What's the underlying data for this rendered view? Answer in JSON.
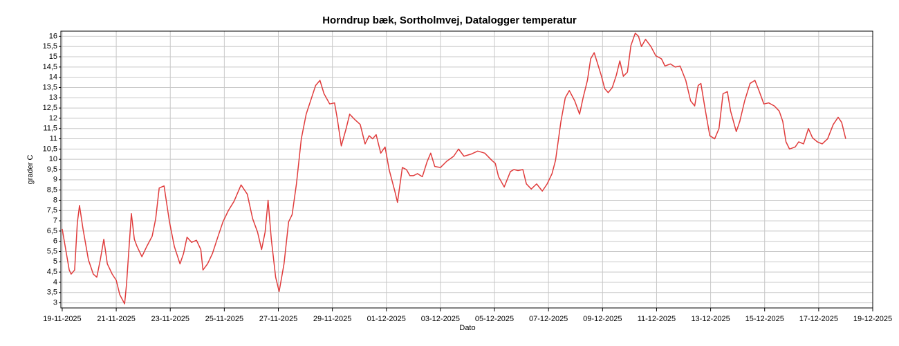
{
  "chart_data": {
    "type": "line",
    "title": "Horndrup bæk, Sortholmvej, Datalogger temperatur",
    "xlabel": "Dato",
    "ylabel": "grader C",
    "color": "#e03c3c",
    "grid": true,
    "x": [
      0,
      0.26,
      0.33,
      0.46,
      0.56,
      0.64,
      0.77,
      0.97,
      1.15,
      1.28,
      1.41,
      1.54,
      1.67,
      1.85,
      2.0,
      2.13,
      2.31,
      2.38,
      2.56,
      2.67,
      2.77,
      2.95,
      3.13,
      3.33,
      3.46,
      3.59,
      3.77,
      3.97,
      4.15,
      4.36,
      4.49,
      4.62,
      4.79,
      4.97,
      5.13,
      5.21,
      5.38,
      5.56,
      5.77,
      5.95,
      6.15,
      6.36,
      6.62,
      6.85,
      7.05,
      7.23,
      7.38,
      7.51,
      7.62,
      7.74,
      7.9,
      8.03,
      8.21,
      8.38,
      8.51,
      8.67,
      8.85,
      9.03,
      9.23,
      9.38,
      9.54,
      9.69,
      9.9,
      10.08,
      10.18,
      10.33,
      10.51,
      10.64,
      10.82,
      11.03,
      11.21,
      11.36,
      11.49,
      11.62,
      11.79,
      11.95,
      12.1,
      12.31,
      12.41,
      12.59,
      12.74,
      12.87,
      13.0,
      13.15,
      13.33,
      13.51,
      13.64,
      13.79,
      14.0,
      14.23,
      14.49,
      14.67,
      14.87,
      15.13,
      15.38,
      15.64,
      15.9,
      16.03,
      16.15,
      16.36,
      16.59,
      16.72,
      16.87,
      17.05,
      17.18,
      17.36,
      17.56,
      17.77,
      17.95,
      18.13,
      18.26,
      18.46,
      18.62,
      18.77,
      18.97,
      19.15,
      19.28,
      19.44,
      19.56,
      19.69,
      19.82,
      19.95,
      20.08,
      20.21,
      20.36,
      20.51,
      20.64,
      20.77,
      20.92,
      21.05,
      21.21,
      21.33,
      21.44,
      21.59,
      21.79,
      21.97,
      22.18,
      22.31,
      22.51,
      22.69,
      22.87,
      23.08,
      23.26,
      23.41,
      23.54,
      23.64,
      23.79,
      23.97,
      24.15,
      24.31,
      24.46,
      24.62,
      24.74,
      24.95,
      25.08,
      25.26,
      25.46,
      25.64,
      25.79,
      25.97,
      26.15,
      26.36,
      26.54,
      26.67,
      26.79,
      26.92,
      27.13,
      27.26,
      27.44,
      27.62,
      27.77,
      27.95,
      28.13,
      28.33,
      28.54,
      28.72,
      28.85,
      29.0
    ],
    "values": [
      6.6,
      4.6,
      4.4,
      4.6,
      6.9,
      7.75,
      6.6,
      5.1,
      4.4,
      4.25,
      5.1,
      6.1,
      4.9,
      4.4,
      4.1,
      3.4,
      2.95,
      3.9,
      7.35,
      6.1,
      5.75,
      5.25,
      5.75,
      6.25,
      7.1,
      8.6,
      8.7,
      6.95,
      5.75,
      4.9,
      5.4,
      6.2,
      5.95,
      6.05,
      5.6,
      4.6,
      4.9,
      5.4,
      6.25,
      6.95,
      7.5,
      7.95,
      8.75,
      8.3,
      7.1,
      6.45,
      5.6,
      6.45,
      8.0,
      6.1,
      4.25,
      3.55,
      4.9,
      6.95,
      7.3,
      8.8,
      11.0,
      12.2,
      13.0,
      13.6,
      13.85,
      13.2,
      12.7,
      12.75,
      12.0,
      10.65,
      11.5,
      12.2,
      11.95,
      11.7,
      10.75,
      11.15,
      11.0,
      11.2,
      10.3,
      10.6,
      9.5,
      8.45,
      7.9,
      9.6,
      9.5,
      9.2,
      9.2,
      9.3,
      9.15,
      9.9,
      10.3,
      9.65,
      9.6,
      9.9,
      10.15,
      10.5,
      10.15,
      10.25,
      10.4,
      10.3,
      9.95,
      9.8,
      9.15,
      8.65,
      9.4,
      9.5,
      9.45,
      9.5,
      8.8,
      8.55,
      8.8,
      8.45,
      8.8,
      9.3,
      9.95,
      11.85,
      13.0,
      13.35,
      12.85,
      12.2,
      13.0,
      13.85,
      14.9,
      15.2,
      14.65,
      14.1,
      13.45,
      13.25,
      13.5,
      14.1,
      14.8,
      14.05,
      14.25,
      15.55,
      16.15,
      16.0,
      15.5,
      15.85,
      15.5,
      15.05,
      14.9,
      14.55,
      14.65,
      14.5,
      14.55,
      13.85,
      12.85,
      12.6,
      13.6,
      13.7,
      12.5,
      11.15,
      11.0,
      11.5,
      13.2,
      13.3,
      12.35,
      11.35,
      11.85,
      12.85,
      13.7,
      13.85,
      13.35,
      12.7,
      12.75,
      12.6,
      12.35,
      11.85,
      10.85,
      10.5,
      10.6,
      10.85,
      10.75,
      11.5,
      11.05,
      10.85,
      10.75,
      11.0,
      11.7,
      12.05,
      11.8,
      11.0
    ],
    "xlim": [
      -0.05,
      30
    ],
    "xticks": [
      {
        "value": 0,
        "label": "19-11-2025"
      },
      {
        "value": 2,
        "label": "21-11-2025"
      },
      {
        "value": 4,
        "label": "23-11-2025"
      },
      {
        "value": 6,
        "label": "25-11-2025"
      },
      {
        "value": 8,
        "label": "27-11-2025"
      },
      {
        "value": 10,
        "label": "29-11-2025"
      },
      {
        "value": 12,
        "label": "01-12-2025"
      },
      {
        "value": 14,
        "label": "03-12-2025"
      },
      {
        "value": 16,
        "label": "05-12-2025"
      },
      {
        "value": 18,
        "label": "07-12-2025"
      },
      {
        "value": 20,
        "label": "09-12-2025"
      },
      {
        "value": 22,
        "label": "11-12-2025"
      },
      {
        "value": 24,
        "label": "13-12-2025"
      },
      {
        "value": 26,
        "label": "15-12-2025"
      },
      {
        "value": 28,
        "label": "17-12-2025"
      },
      {
        "value": 30,
        "label": "19-12-2025"
      }
    ],
    "ylim": [
      2.75,
      16.25
    ],
    "yticks": [
      3,
      {
        "value": 3.5,
        "label": "3,5"
      },
      4,
      {
        "value": 4.5,
        "label": "4,5"
      },
      5,
      {
        "value": 5.5,
        "label": "5,5"
      },
      6,
      {
        "value": 6.5,
        "label": "6,5"
      },
      7,
      {
        "value": 7.5,
        "label": "7,5"
      },
      8,
      {
        "value": 8.5,
        "label": "8,5"
      },
      9,
      {
        "value": 9.5,
        "label": "9,5"
      },
      10,
      {
        "value": 10.5,
        "label": "10,5"
      },
      11,
      {
        "value": 11.5,
        "label": "11,5"
      },
      12,
      {
        "value": 12.5,
        "label": "12,5"
      },
      13,
      {
        "value": 13.5,
        "label": "13,5"
      },
      14,
      {
        "value": 14.5,
        "label": "14,5"
      },
      15,
      {
        "value": 15.5,
        "label": "15,5"
      },
      16
    ]
  }
}
